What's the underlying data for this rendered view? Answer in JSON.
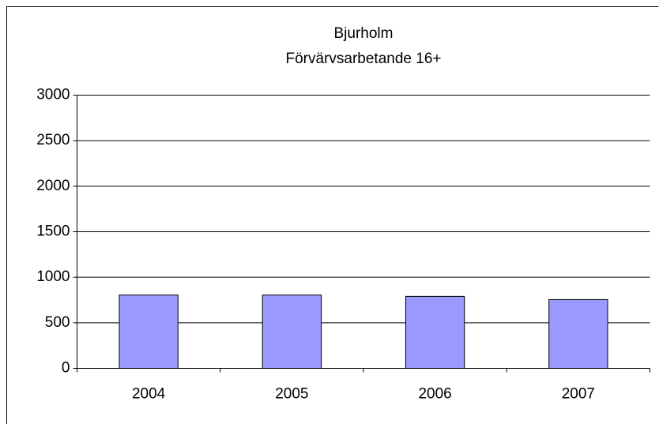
{
  "chart_data": {
    "type": "bar",
    "title": "Bjurholm",
    "subtitle": "Förvärvsarbetande 16+",
    "categories": [
      "2004",
      "2005",
      "2006",
      "2007"
    ],
    "values": [
      805,
      805,
      790,
      755
    ],
    "color": "#9999ff",
    "ylim": [
      0,
      3000
    ],
    "yticks": [
      0,
      500,
      1000,
      1500,
      2000,
      2500,
      3000
    ],
    "grid": true
  }
}
